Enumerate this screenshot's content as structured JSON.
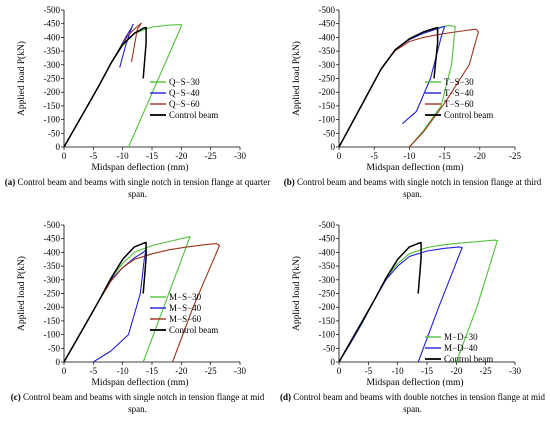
{
  "colors": {
    "green": "#52c03c",
    "blue": "#1f1fd8",
    "brown": "#a0331d",
    "black": "#000000"
  },
  "chart_data": [
    {
      "id": "a",
      "type": "line",
      "caption_tag": "(a)",
      "caption_text": "Control beam and beams with single notch in tension flange at quarter span.",
      "xlabel": "Midspan deflection (mm)",
      "ylabel": "Applied load  P(kN)",
      "xlim": [
        0,
        -30
      ],
      "ylim": [
        0,
        -500
      ],
      "xticks": [
        0,
        -5,
        -10,
        -15,
        -20,
        -25,
        -30
      ],
      "yticks": [
        0,
        -50,
        -100,
        -150,
        -200,
        -250,
        -300,
        -350,
        -400,
        -450,
        -500
      ],
      "legend_position": "right-middle",
      "series": [
        {
          "name": "Q−S−30",
          "color": "green",
          "x": [
            0,
            -2,
            -4,
            -6,
            -8,
            -10,
            -12,
            -15,
            -18,
            -20,
            -20,
            -11
          ],
          "y": [
            0,
            -75,
            -150,
            -225,
            -305,
            -370,
            -415,
            -438,
            -445,
            -447,
            -440,
            0
          ]
        },
        {
          "name": "Q−S−40",
          "color": "blue",
          "x": [
            0,
            -2,
            -4,
            -6,
            -8,
            -9.5,
            -10.5,
            -11.5,
            -11.8,
            -11.6,
            -10.5,
            -9.5
          ],
          "y": [
            0,
            -75,
            -150,
            -225,
            -305,
            -360,
            -400,
            -435,
            -448,
            -440,
            -370,
            -290
          ]
        },
        {
          "name": "Q−S−60",
          "color": "brown",
          "x": [
            0,
            -2,
            -4,
            -6,
            -8,
            -9.5,
            -11,
            -12.5,
            -13.2,
            -12.5,
            -11.5
          ],
          "y": [
            0,
            -75,
            -150,
            -225,
            -305,
            -360,
            -410,
            -440,
            -452,
            -430,
            -310
          ]
        },
        {
          "name": "Control beam",
          "color": "black",
          "x": [
            0,
            -2,
            -4,
            -6,
            -8,
            -10,
            -12,
            -13.5,
            -14,
            -14,
            -13.5
          ],
          "y": [
            0,
            -75,
            -150,
            -225,
            -305,
            -375,
            -415,
            -433,
            -436,
            -380,
            -250
          ]
        }
      ]
    },
    {
      "id": "b",
      "type": "line",
      "caption_tag": "(b)",
      "caption_text": "Control beam and beams with single notch in tension flange at third span.",
      "xlabel": "Midspan deflection (mm)",
      "ylabel": "Applied load  P(kN)",
      "xlim": [
        0,
        -25
      ],
      "ylim": [
        0,
        -500
      ],
      "xticks": [
        0,
        -5,
        -10,
        -15,
        -20,
        -25
      ],
      "yticks": [
        0,
        -50,
        -100,
        -150,
        -200,
        -250,
        -300,
        -350,
        -400,
        -450,
        -500
      ],
      "legend_position": "right-middle",
      "series": [
        {
          "name": "T−S−30",
          "color": "green",
          "x": [
            0,
            -2,
            -4,
            -6,
            -8,
            -10,
            -12,
            -14,
            -15.5,
            -16.5,
            -16,
            -14.5,
            -12,
            -10
          ],
          "y": [
            0,
            -95,
            -190,
            -285,
            -355,
            -395,
            -420,
            -435,
            -443,
            -440,
            -300,
            -150,
            -60,
            0
          ]
        },
        {
          "name": "T−S−40",
          "color": "blue",
          "x": [
            0,
            -2,
            -4,
            -6,
            -8,
            -10,
            -12,
            -14,
            -15,
            -14.5,
            -13,
            -11,
            -9
          ],
          "y": [
            0,
            -95,
            -190,
            -285,
            -355,
            -392,
            -415,
            -432,
            -440,
            -400,
            -250,
            -130,
            -85
          ]
        },
        {
          "name": "T−S−60",
          "color": "brown",
          "x": [
            0,
            -2,
            -4,
            -6,
            -8,
            -10,
            -12,
            -14,
            -16,
            -18,
            -19.5,
            -19.8,
            -18.5,
            -15,
            -12,
            -10
          ],
          "y": [
            0,
            -95,
            -190,
            -285,
            -352,
            -385,
            -400,
            -410,
            -418,
            -425,
            -430,
            -420,
            -300,
            -160,
            -55,
            0
          ]
        },
        {
          "name": "Control beam",
          "color": "black",
          "x": [
            0,
            -2,
            -4,
            -6,
            -8,
            -10,
            -12,
            -13.5,
            -14,
            -14,
            -13.5
          ],
          "y": [
            0,
            -95,
            -190,
            -285,
            -355,
            -395,
            -420,
            -432,
            -436,
            -380,
            -250
          ]
        }
      ]
    },
    {
      "id": "c",
      "type": "line",
      "caption_tag": "(c)",
      "caption_text": "Control beam and beams with single notch in tension flange at mid span.",
      "xlabel": "Midspan deflection (mm)",
      "ylabel": "Applied load  P(kN)",
      "xlim": [
        0,
        -30
      ],
      "ylim": [
        0,
        -500
      ],
      "xticks": [
        0,
        -5,
        -10,
        -15,
        -20,
        -25,
        -30
      ],
      "yticks": [
        0,
        -50,
        -100,
        -150,
        -200,
        -250,
        -300,
        -350,
        -400,
        -450,
        -500
      ],
      "legend_position": "right-middle",
      "series": [
        {
          "name": "M−S−30",
          "color": "green",
          "x": [
            0,
            -2,
            -4,
            -6,
            -8,
            -10,
            -12,
            -15,
            -18,
            -21,
            -21.5,
            -17,
            -13.5
          ],
          "y": [
            0,
            -75,
            -150,
            -225,
            -305,
            -360,
            -400,
            -425,
            -440,
            -455,
            -458,
            -200,
            0
          ]
        },
        {
          "name": "M−S−40",
          "color": "blue",
          "x": [
            0,
            -2,
            -4,
            -6,
            -8,
            -10,
            -12,
            -13.5,
            -14,
            -13.7,
            -13,
            -11,
            -8,
            -5
          ],
          "y": [
            0,
            -75,
            -150,
            -225,
            -300,
            -345,
            -380,
            -400,
            -410,
            -380,
            -250,
            -100,
            -40,
            0
          ]
        },
        {
          "name": "M−S−60",
          "color": "brown",
          "x": [
            0,
            -2,
            -4,
            -6,
            -8,
            -10,
            -12,
            -15,
            -18,
            -21,
            -24,
            -26,
            -26.5,
            -22,
            -18.5
          ],
          "y": [
            0,
            -75,
            -150,
            -225,
            -295,
            -345,
            -375,
            -395,
            -410,
            -420,
            -428,
            -432,
            -425,
            -200,
            0
          ]
        },
        {
          "name": "Control beam",
          "color": "black",
          "x": [
            0,
            -2,
            -4,
            -6,
            -8,
            -10,
            -12,
            -13.5,
            -14,
            -14,
            -13.5
          ],
          "y": [
            0,
            -75,
            -150,
            -225,
            -305,
            -375,
            -420,
            -433,
            -436,
            -380,
            -250
          ]
        }
      ]
    },
    {
      "id": "d",
      "type": "line",
      "caption_tag": "(d)",
      "caption_text": "Control beam and beams with double notches in tension flange at mid span.",
      "xlabel": "Midspan deflection (mm)",
      "ylabel": "Applied load  P(kN)",
      "xlim": [
        0,
        -30
      ],
      "ylim": [
        0,
        -500
      ],
      "xticks": [
        0,
        -5,
        -10,
        -15,
        -20,
        -25,
        -30
      ],
      "yticks": [
        0,
        -50,
        -100,
        -150,
        -200,
        -250,
        -300,
        -350,
        -400,
        -450,
        -500
      ],
      "legend_position": "right-bottom",
      "series": [
        {
          "name": "M−D−30",
          "color": "green",
          "x": [
            0,
            -2,
            -4,
            -6,
            -8,
            -10,
            -12,
            -15,
            -18,
            -21,
            -24,
            -26.5,
            -27,
            -23.5,
            -20
          ],
          "y": [
            0,
            -70,
            -145,
            -225,
            -305,
            -360,
            -395,
            -418,
            -428,
            -435,
            -440,
            -445,
            -443,
            -200,
            0
          ]
        },
        {
          "name": "M−D−40",
          "color": "blue",
          "x": [
            0,
            -2,
            -4,
            -6,
            -8,
            -10,
            -12,
            -15,
            -18,
            -20.5,
            -21,
            -17,
            -13.5
          ],
          "y": [
            0,
            -70,
            -145,
            -225,
            -300,
            -350,
            -385,
            -405,
            -415,
            -420,
            -418,
            -200,
            0
          ]
        },
        {
          "name": "Control beam",
          "color": "black",
          "x": [
            0,
            -2,
            -4,
            -6,
            -8,
            -10,
            -12,
            -13.5,
            -14,
            -14,
            -13.5
          ],
          "y": [
            0,
            -75,
            -150,
            -225,
            -305,
            -375,
            -420,
            -433,
            -436,
            -380,
            -250
          ]
        }
      ]
    }
  ]
}
